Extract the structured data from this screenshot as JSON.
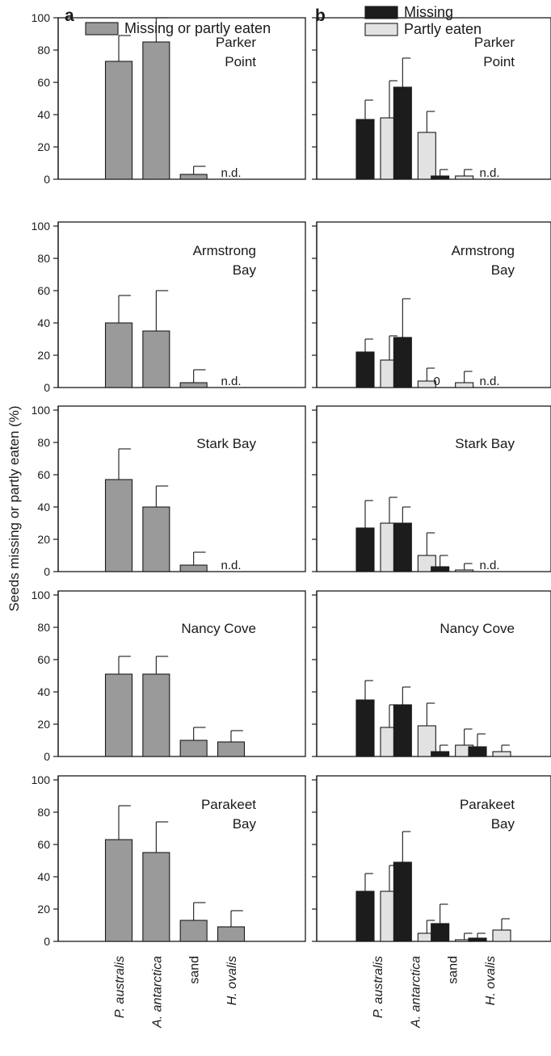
{
  "chart_data": {
    "type": "bar",
    "ylabel": "Seeds missing or partly eaten (%)",
    "ylim": [
      0,
      100
    ],
    "yticks": [
      0,
      20,
      40,
      60,
      80,
      100
    ],
    "categories": [
      "P. australis",
      "A. antarctica",
      "sand",
      "H. ovalis"
    ],
    "not_determined_label": "n.d.",
    "colors": {
      "combined": "#9a9a9a",
      "missing": "#1c1c1c",
      "partly_eaten": "#e2e2e2"
    },
    "panels": [
      {
        "letter": "a",
        "legend": [
          {
            "series": "combined",
            "label": "Missing or partly eaten"
          }
        ],
        "series_keys": [
          "combined"
        ]
      },
      {
        "letter": "b",
        "legend": [
          {
            "series": "missing",
            "label": "Missing"
          },
          {
            "series": "partly_eaten",
            "label": "Partly eaten"
          }
        ],
        "series_keys": [
          "missing",
          "partly_eaten"
        ]
      }
    ],
    "sites": [
      {
        "name_lines": [
          "Parker",
          "Point"
        ],
        "combined": {
          "values": [
            73,
            85,
            3,
            null
          ],
          "errors": [
            16,
            18,
            5,
            null
          ]
        },
        "missing": {
          "values": [
            37,
            57,
            2,
            null
          ],
          "errors": [
            12,
            18,
            4,
            null
          ]
        },
        "partly_eaten": {
          "values": [
            38,
            29,
            2,
            null
          ],
          "errors": [
            23,
            13,
            4,
            null
          ]
        }
      },
      {
        "name_lines": [
          "Armstrong",
          "Bay"
        ],
        "combined": {
          "values": [
            40,
            35,
            3,
            null
          ],
          "errors": [
            17,
            25,
            8,
            null
          ]
        },
        "missing": {
          "values": [
            22,
            31,
            0,
            null
          ],
          "errors": [
            8,
            24,
            0,
            null
          ]
        },
        "partly_eaten": {
          "values": [
            17,
            4,
            3,
            null
          ],
          "errors": [
            15,
            8,
            7,
            null
          ]
        }
      },
      {
        "name_lines": [
          "Stark  Bay"
        ],
        "combined": {
          "values": [
            57,
            40,
            4,
            null
          ],
          "errors": [
            19,
            13,
            8,
            null
          ]
        },
        "missing": {
          "values": [
            27,
            30,
            3,
            null
          ],
          "errors": [
            17,
            10,
            7,
            null
          ]
        },
        "partly_eaten": {
          "values": [
            30,
            10,
            1,
            null
          ],
          "errors": [
            16,
            14,
            4,
            null
          ]
        }
      },
      {
        "name_lines": [
          "Nancy Cove"
        ],
        "combined": {
          "values": [
            51,
            51,
            10,
            9
          ],
          "errors": [
            11,
            11,
            8,
            7
          ]
        },
        "missing": {
          "values": [
            35,
            32,
            3,
            6
          ],
          "errors": [
            12,
            11,
            4,
            8
          ]
        },
        "partly_eaten": {
          "values": [
            18,
            19,
            7,
            3
          ],
          "errors": [
            14,
            14,
            10,
            4
          ]
        }
      },
      {
        "name_lines": [
          "Parakeet",
          "Bay"
        ],
        "combined": {
          "values": [
            63,
            55,
            13,
            9
          ],
          "errors": [
            21,
            19,
            11,
            10
          ]
        },
        "missing": {
          "values": [
            31,
            49,
            11,
            2
          ],
          "errors": [
            11,
            19,
            12,
            3
          ]
        },
        "partly_eaten": {
          "values": [
            31,
            5,
            1,
            7
          ],
          "errors": [
            16,
            8,
            4,
            7
          ]
        }
      }
    ],
    "annotations": [
      {
        "panel": "b",
        "site": 1,
        "category": 2,
        "series": "missing",
        "text": "0"
      }
    ]
  }
}
